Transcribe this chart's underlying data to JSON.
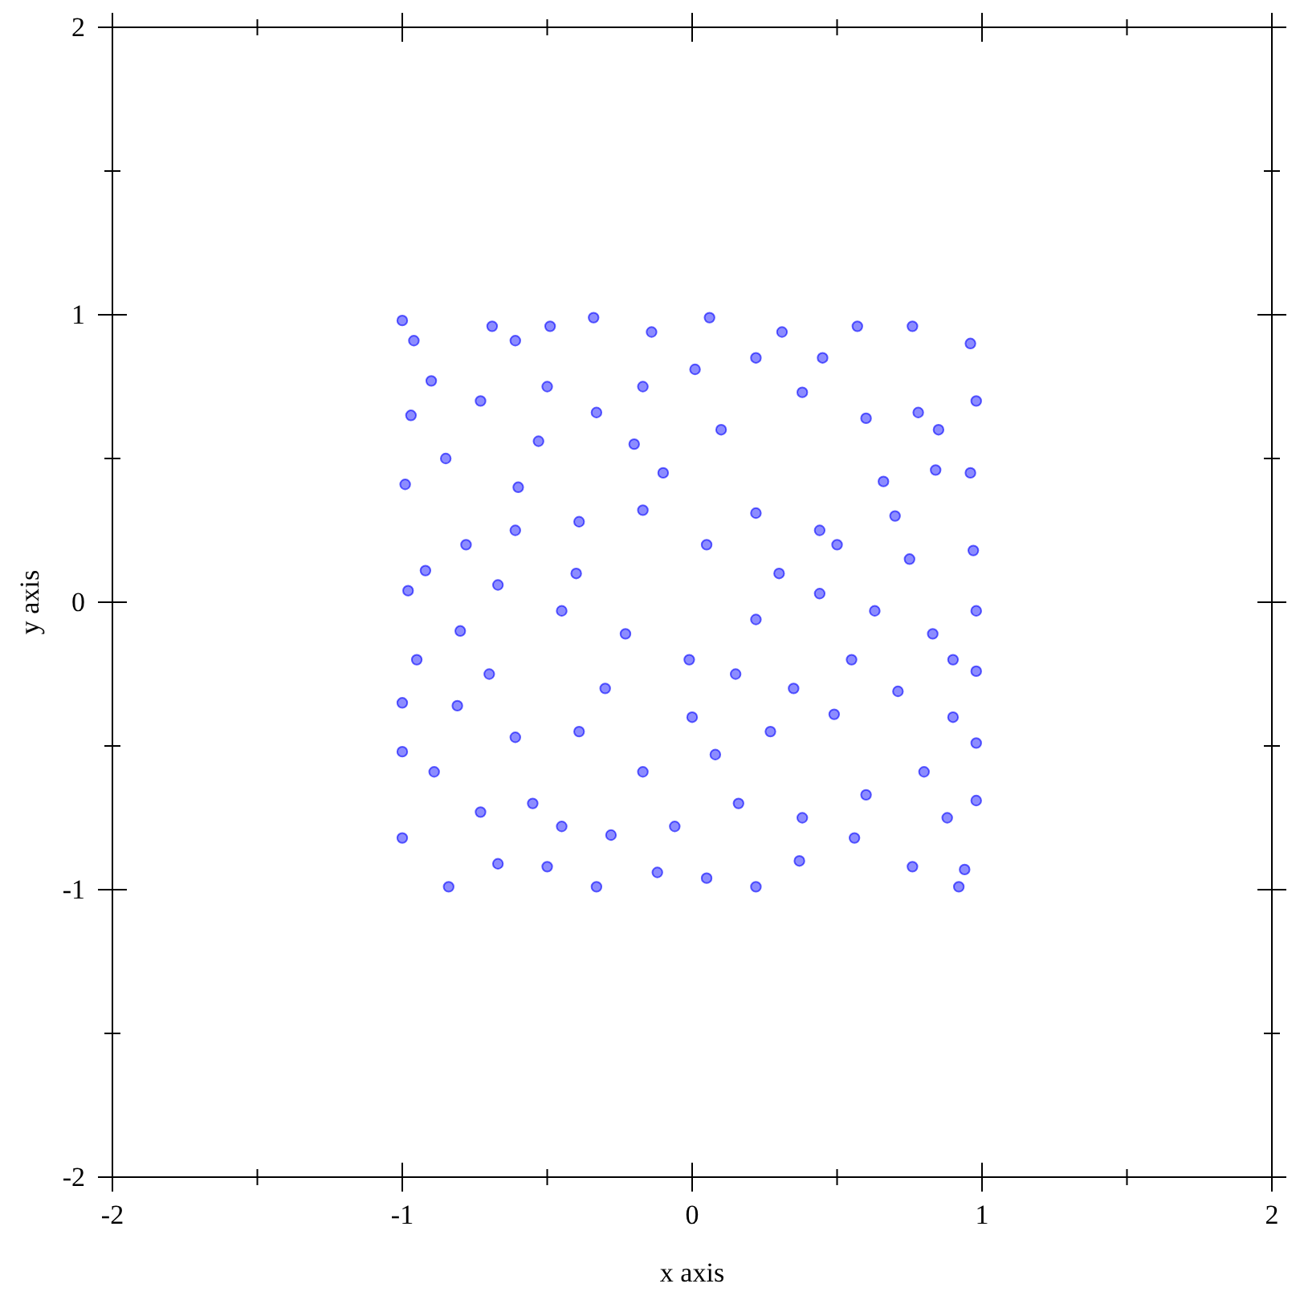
{
  "chart_data": {
    "type": "scatter",
    "xlabel": "x axis",
    "ylabel": "y axis",
    "xlim": [
      -2,
      2
    ],
    "ylim": [
      -2,
      2
    ],
    "xticks": [
      -2,
      {
        "value": -1.5,
        "label": null
      },
      -1,
      {
        "value": -0.5,
        "label": null
      },
      0,
      {
        "value": 0.5,
        "label": null
      },
      1,
      {
        "value": 1.5,
        "label": null
      },
      2
    ],
    "yticks": [
      -2,
      {
        "value": -1.5,
        "label": null
      },
      -1,
      {
        "value": -0.5,
        "label": null
      },
      0,
      {
        "value": 0.5,
        "label": null
      },
      1,
      {
        "value": 1.5,
        "label": null
      },
      2
    ],
    "marker": "circle",
    "grid": false,
    "series": [
      {
        "color": "#0000ff",
        "x": [
          -1.0,
          -0.96,
          -0.9,
          -0.69,
          -0.61,
          -0.49,
          -0.34,
          -0.14,
          0.06,
          0.31,
          0.57,
          0.76,
          0.96,
          0.98,
          0.96,
          0.97,
          0.98,
          0.98,
          0.98,
          0.98,
          0.94,
          0.92,
          0.76,
          0.56,
          0.37,
          0.22,
          0.05,
          -0.12,
          -0.33,
          -0.5,
          -0.67,
          -0.84,
          -1.0,
          -1.0,
          -1.0,
          -0.98,
          -0.99,
          -0.97,
          -0.73,
          -0.53,
          -0.33,
          -0.17,
          0.01,
          0.22,
          0.38,
          0.6,
          0.78,
          0.84,
          0.66,
          0.44,
          0.22,
          0.05,
          -0.17,
          -0.39,
          -0.61,
          -0.78,
          -0.92,
          -0.67,
          -0.45,
          -0.23,
          -0.01,
          0.22,
          0.44,
          0.63,
          0.83,
          0.71,
          0.49,
          0.27,
          0.08,
          -0.17,
          -0.39,
          -0.61,
          -0.81,
          -0.89,
          -0.73,
          -0.55,
          -0.45,
          -0.28,
          -0.06,
          0.16,
          0.38,
          0.6,
          0.8,
          0.88,
          -0.85,
          -0.6,
          -0.4,
          -0.2,
          0.1,
          0.3,
          0.5,
          0.7,
          0.9,
          -0.8,
          -0.3,
          0.15,
          0.55,
          0.85,
          -0.7,
          -0.1,
          0.35,
          0.75,
          -0.5,
          0.0,
          0.45,
          -0.95,
          0.9
        ],
        "values": [
          0.98,
          0.91,
          0.77,
          0.96,
          0.91,
          0.96,
          0.99,
          0.94,
          0.99,
          0.94,
          0.96,
          0.96,
          0.9,
          0.7,
          0.45,
          0.18,
          -0.03,
          -0.24,
          -0.49,
          -0.69,
          -0.93,
          -0.99,
          -0.92,
          -0.82,
          -0.9,
          -0.99,
          -0.96,
          -0.94,
          -0.99,
          -0.92,
          -0.91,
          -0.99,
          -0.82,
          -0.52,
          -0.35,
          0.04,
          0.41,
          0.65,
          0.7,
          0.56,
          0.66,
          0.75,
          0.81,
          0.85,
          0.73,
          0.64,
          0.66,
          0.46,
          0.42,
          0.25,
          0.31,
          0.2,
          0.32,
          0.28,
          0.25,
          0.2,
          0.11,
          0.06,
          -0.03,
          -0.11,
          -0.2,
          -0.06,
          0.03,
          -0.03,
          -0.11,
          -0.31,
          -0.39,
          -0.45,
          -0.53,
          -0.59,
          -0.45,
          -0.47,
          -0.36,
          -0.59,
          -0.73,
          -0.7,
          -0.78,
          -0.81,
          -0.78,
          -0.7,
          -0.75,
          -0.67,
          -0.59,
          -0.75,
          0.5,
          0.4,
          0.1,
          0.55,
          0.6,
          0.1,
          0.2,
          0.3,
          -0.2,
          -0.1,
          -0.3,
          -0.25,
          -0.2,
          0.6,
          -0.25,
          0.45,
          -0.3,
          0.15,
          0.75,
          -0.4,
          0.85,
          -0.2,
          -0.4
        ]
      }
    ]
  }
}
